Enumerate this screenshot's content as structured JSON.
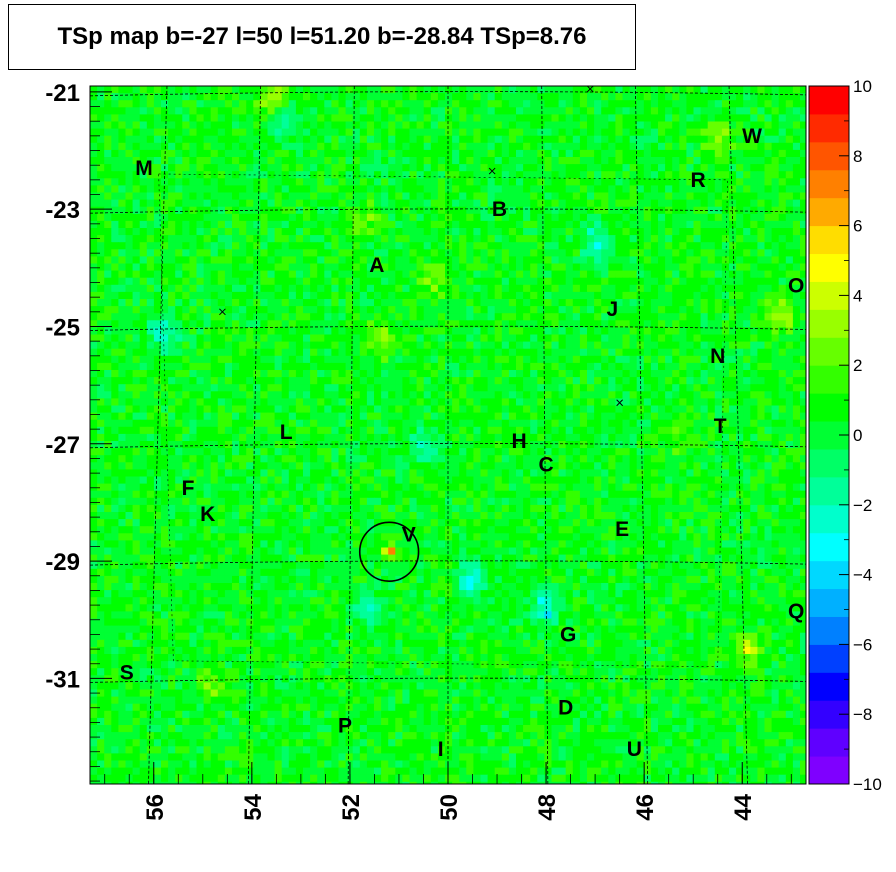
{
  "title": "TSp map b=-27 l=50 l=51.20 b=-28.84 TSp=8.76",
  "chart_data": {
    "type": "heatmap",
    "title": "TSp map b=-27 l=50 l=51.20 b=-28.84 TSp=8.76",
    "x_axis": {
      "label": "",
      "range": [
        57.3,
        42.7
      ],
      "reversed": true,
      "ticks": [
        56,
        54,
        52,
        50,
        48,
        46,
        44
      ],
      "tick_labels": [
        "56",
        "54",
        "52",
        "50",
        "48",
        "46",
        "44"
      ]
    },
    "y_axis": {
      "label": "",
      "range": [
        -32.8,
        -20.9
      ],
      "ticks": [
        -21,
        -23,
        -25,
        -27,
        -29,
        -31
      ],
      "tick_labels": [
        "-21",
        "-23",
        "-25",
        "-27",
        "-29",
        "-31"
      ]
    },
    "z_axis": {
      "range": [
        -10,
        10
      ],
      "ticks": [
        10,
        8,
        6,
        4,
        2,
        0,
        -2,
        -4,
        -6,
        -8,
        -10
      ],
      "tick_labels": [
        "10",
        "8",
        "6",
        "4",
        "2",
        "0",
        "−2",
        "−4",
        "−6",
        "−8",
        "−10"
      ]
    },
    "background_level": 0.5,
    "peak": {
      "l": 51.2,
      "b": -28.84,
      "value": 8.76
    },
    "hotspots": [
      {
        "l": 51.35,
        "b": -25.2,
        "value": 3.2
      },
      {
        "l": 50.3,
        "b": -24.2,
        "value": 2.6
      },
      {
        "l": 51.7,
        "b": -23.2,
        "value": 2.4
      },
      {
        "l": 44.5,
        "b": -21.8,
        "value": 3.0
      },
      {
        "l": 43.9,
        "b": -30.5,
        "value": 3.5
      },
      {
        "l": 43.2,
        "b": -24.8,
        "value": 3.4
      },
      {
        "l": 54.8,
        "b": -31.1,
        "value": 2.5
      },
      {
        "l": 53.6,
        "b": -21.1,
        "value": 3.2
      },
      {
        "l": 45.3,
        "b": -26.9,
        "value": 2.2
      }
    ],
    "coldspots": [
      {
        "l": 49.5,
        "b": -29.3,
        "value": -3.0
      },
      {
        "l": 48.0,
        "b": -29.8,
        "value": -3.5
      },
      {
        "l": 51.6,
        "b": -29.8,
        "value": -2.6
      },
      {
        "l": 55.8,
        "b": -25.1,
        "value": -2.6
      },
      {
        "l": 47.0,
        "b": -23.6,
        "value": -2.4
      },
      {
        "l": 50.5,
        "b": -27.0,
        "value": -2.2
      },
      {
        "l": 53.3,
        "b": -21.5,
        "value": -2.3
      }
    ],
    "grid": true,
    "colorbar": "right"
  },
  "colorbar_colors": [
    "#7f00ff",
    "#5f00ff",
    "#3300ff",
    "#0000ff",
    "#0040ff",
    "#0080ff",
    "#00b0ff",
    "#00d8ff",
    "#00ffff",
    "#00ffcc",
    "#00ff99",
    "#00ff66",
    "#00ff33",
    "#00ff00",
    "#33ff00",
    "#66ff00",
    "#99ff00",
    "#ccff00",
    "#ffff00",
    "#ffdd00",
    "#ffaa00",
    "#ff8000",
    "#ff5500",
    "#ff2a00",
    "#ff0000"
  ],
  "sources": [
    {
      "name": "M",
      "l": 56.2,
      "b": -22.3
    },
    {
      "name": "B",
      "l": 48.95,
      "b": -23.0
    },
    {
      "name": "R",
      "l": 44.9,
      "b": -22.5
    },
    {
      "name": "W",
      "l": 43.8,
      "b": -21.75
    },
    {
      "name": "A",
      "l": 51.45,
      "b": -23.95
    },
    {
      "name": "O",
      "l": 42.9,
      "b": -24.3
    },
    {
      "name": "J",
      "l": 46.65,
      "b": -24.7
    },
    {
      "name": "N",
      "l": 44.5,
      "b": -25.5
    },
    {
      "name": "L",
      "l": 53.3,
      "b": -26.8
    },
    {
      "name": "H",
      "l": 48.55,
      "b": -26.95
    },
    {
      "name": "T",
      "l": 44.45,
      "b": -26.7
    },
    {
      "name": "C",
      "l": 48.0,
      "b": -27.35
    },
    {
      "name": "F",
      "l": 55.3,
      "b": -27.75
    },
    {
      "name": "K",
      "l": 54.9,
      "b": -28.2
    },
    {
      "name": "V",
      "l": 50.8,
      "b": -28.55
    },
    {
      "name": "E",
      "l": 46.45,
      "b": -28.45
    },
    {
      "name": "Q",
      "l": 42.9,
      "b": -29.85
    },
    {
      "name": "G",
      "l": 47.55,
      "b": -30.25
    },
    {
      "name": "S",
      "l": 56.55,
      "b": -30.9
    },
    {
      "name": "D",
      "l": 47.6,
      "b": -31.5
    },
    {
      "name": "P",
      "l": 52.1,
      "b": -31.8
    },
    {
      "name": "I",
      "l": 50.15,
      "b": -32.2
    },
    {
      "name": "U",
      "l": 46.2,
      "b": -32.2
    }
  ],
  "markers": [
    {
      "l": 47.1,
      "b": -20.95
    },
    {
      "l": 49.1,
      "b": -22.35
    },
    {
      "l": 54.6,
      "b": -24.75
    },
    {
      "l": 46.5,
      "b": -26.3
    }
  ],
  "circle": {
    "l": 51.2,
    "b": -28.84,
    "radius_deg": 0.6
  }
}
